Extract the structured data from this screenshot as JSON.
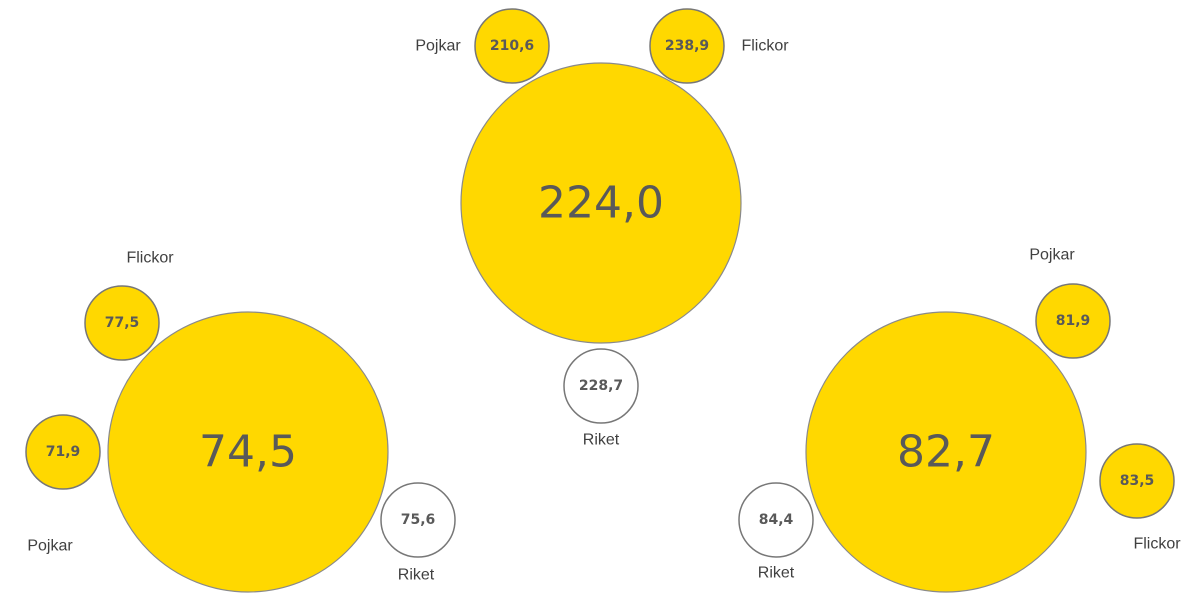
{
  "groups": [
    {
      "value": "224,0",
      "items": [
        {
          "label": "Pojkar",
          "value": "210,6"
        },
        {
          "label": "Flickor",
          "value": "238,9"
        },
        {
          "label": "Riket",
          "value": "228,7"
        }
      ]
    },
    {
      "value": "74,5",
      "items": [
        {
          "label": "Flickor",
          "value": "77,5"
        },
        {
          "label": "Pojkar",
          "value": "71,9"
        },
        {
          "label": "Riket",
          "value": "75,6"
        }
      ]
    },
    {
      "value": "82,7",
      "items": [
        {
          "label": "Pojkar",
          "value": "81,9"
        },
        {
          "label": "Flickor",
          "value": "83,5"
        },
        {
          "label": "Riket",
          "value": "84,4"
        }
      ]
    }
  ]
}
